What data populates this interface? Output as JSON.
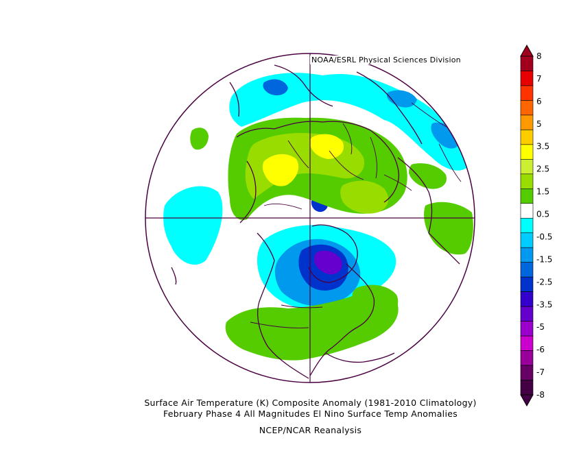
{
  "credit": "NOAA/ESRL Physical Sciences Division",
  "caption": {
    "line1": "Surface Air Temperature (K) Composite Anomaly (1981-2010 Climatology)",
    "line2": "February Phase 4 All Magnitudes  El Nino Surface Temp Anomalies",
    "line3": "NCEP/NCAR Reanalysis"
  },
  "colorbar": {
    "labels": [
      "8",
      "7",
      "6",
      "5",
      "3.5",
      "2.5",
      "1.5",
      "0.5",
      "-0.5",
      "-1.5",
      "-2.5",
      "-3.5",
      "-5",
      "-6",
      "-7",
      "-8"
    ],
    "colors": [
      "#a0001e",
      "#e60000",
      "#ff3300",
      "#ff6600",
      "#ff9900",
      "#ffcc00",
      "#ffff00",
      "#ccee33",
      "#99dd00",
      "#55cc00",
      "#ffffff",
      "#00ffff",
      "#00ccff",
      "#0099ee",
      "#0066dd",
      "#0033cc",
      "#3300cc",
      "#6600cc",
      "#9900cc",
      "#cc00cc",
      "#990099",
      "#660066",
      "#440044"
    ]
  },
  "colors": {
    "coastline": "#4a0040",
    "border": "#4a0040"
  }
}
